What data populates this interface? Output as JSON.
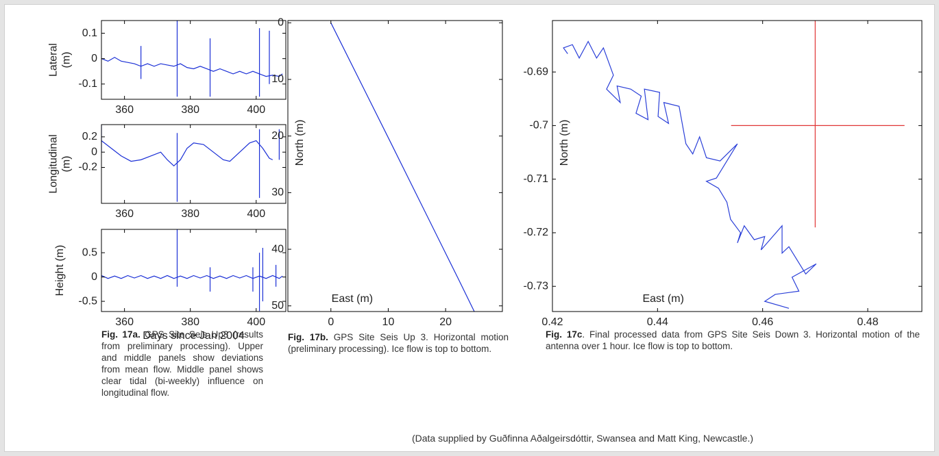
{
  "chart_data": [
    {
      "type": "line",
      "ylabel": [
        "Lateral",
        "(m)"
      ],
      "xlim": [
        353,
        409
      ],
      "ylim": [
        -0.16,
        0.15
      ],
      "xticks": [
        360,
        380,
        400
      ],
      "yticks": [
        0.1,
        0,
        -0.1
      ],
      "series": [
        {
          "color": "#1a2fd6",
          "x": [
            353,
            355,
            357,
            359,
            361,
            363,
            365,
            367,
            369,
            371,
            373,
            375,
            377,
            379,
            381,
            383,
            385,
            387,
            389,
            391,
            393,
            395,
            397,
            399,
            401,
            403,
            405,
            407,
            408
          ],
          "values": [
            0.0,
            -0.01,
            0.005,
            -0.01,
            -0.015,
            -0.02,
            -0.03,
            -0.02,
            -0.03,
            -0.02,
            -0.025,
            -0.03,
            -0.02,
            -0.035,
            -0.04,
            -0.03,
            -0.04,
            -0.05,
            -0.04,
            -0.05,
            -0.06,
            -0.05,
            -0.06,
            -0.05,
            -0.06,
            -0.07,
            -0.065,
            -0.07,
            -0.06
          ]
        },
        {
          "color": "#1a2fd6",
          "x": [
            365,
            365,
            null,
            376,
            376,
            null,
            386,
            386,
            null,
            401,
            401,
            null,
            404,
            404
          ],
          "values": [
            0.05,
            -0.08,
            null,
            0.15,
            -0.15,
            null,
            0.08,
            -0.15,
            null,
            0.12,
            -0.15,
            null,
            0.11,
            -0.1
          ]
        }
      ]
    },
    {
      "type": "line",
      "ylabel": [
        "Longitudinal",
        "(m)"
      ],
      "xlim": [
        353,
        409
      ],
      "ylim": [
        -0.67,
        0.36
      ],
      "xticks": [
        360,
        380,
        400
      ],
      "yticks": [
        0.2,
        0,
        -0.2
      ],
      "series": [
        {
          "color": "#1a2fd6",
          "x": [
            353,
            356,
            359,
            362,
            365,
            368,
            371,
            373,
            375,
            377,
            379,
            381,
            384,
            387,
            390,
            392,
            395,
            398,
            400,
            402,
            404,
            405
          ],
          "values": [
            0.15,
            0.05,
            -0.05,
            -0.12,
            -0.1,
            -0.05,
            0,
            -0.1,
            -0.18,
            -0.1,
            0.05,
            0.12,
            0.1,
            0.0,
            -0.1,
            -0.12,
            0.0,
            0.12,
            0.15,
            0.05,
            -0.08,
            -0.1
          ]
        },
        {
          "color": "#1a2fd6",
          "x": [
            353,
            353,
            null,
            376,
            376,
            null,
            401,
            401,
            null,
            407,
            407
          ],
          "values": [
            0.35,
            0,
            null,
            0.25,
            -0.65,
            null,
            0.3,
            -0.6,
            null,
            0.3,
            -0.1
          ]
        }
      ]
    },
    {
      "type": "line",
      "ylabel": [
        "Height (m)"
      ],
      "xlabel": "Days since Jan 2004",
      "xlim": [
        353,
        409
      ],
      "ylim": [
        -0.71,
        0.98
      ],
      "xticks": [
        360,
        380,
        400
      ],
      "yticks": [
        0.5,
        0,
        -0.5
      ],
      "series": [
        {
          "color": "#1a2fd6",
          "x": [
            353,
            355,
            357,
            359,
            361,
            363,
            365,
            367,
            369,
            371,
            373,
            375,
            377,
            379,
            381,
            383,
            385,
            387,
            389,
            391,
            393,
            395,
            397,
            399,
            401,
            403,
            405,
            407,
            408
          ],
          "values": [
            0.03,
            -0.03,
            0.02,
            -0.03,
            0.03,
            -0.02,
            0.03,
            -0.03,
            0.02,
            -0.03,
            0.03,
            -0.03,
            0.02,
            -0.03,
            0.03,
            -0.02,
            0.03,
            -0.03,
            0.02,
            -0.03,
            0.03,
            -0.02,
            0.03,
            -0.03,
            0.02,
            -0.03,
            0.03,
            -0.03,
            0.02
          ]
        },
        {
          "color": "#1a2fd6",
          "x": [
            376,
            376,
            null,
            386,
            386,
            null,
            399,
            399,
            null,
            401,
            401,
            null,
            402,
            402,
            null,
            406,
            406
          ],
          "values": [
            0.98,
            -0.2,
            null,
            0.2,
            -0.3,
            null,
            0.2,
            -0.3,
            null,
            0.5,
            -0.7,
            null,
            0.6,
            -0.5,
            null,
            0.25,
            -0.2
          ]
        }
      ]
    },
    {
      "type": "line",
      "ylabel": "North (m)",
      "xlabel": "East (m)",
      "xlim": [
        -7.5,
        29.9
      ],
      "ylim": [
        -0.4,
        51
      ],
      "y_inverted": true,
      "xticks": [
        0,
        10,
        20
      ],
      "yticks": [
        0,
        10,
        20,
        30,
        40,
        50
      ],
      "series": [
        {
          "color": "#1a2fd6",
          "x": [
            0,
            10.5,
            22.2,
            25
          ],
          "values": [
            0,
            21.3,
            45.2,
            51
          ]
        }
      ]
    },
    {
      "type": "line",
      "ylabel": "North (m)",
      "xlabel": "East (m)",
      "xlim": [
        0.42,
        0.4903
      ],
      "ylim": [
        -0.7347,
        -0.6804
      ],
      "xticks": [
        0.42,
        0.44,
        0.46,
        0.48
      ],
      "yticks": [
        -0.69,
        -0.7,
        -0.71,
        -0.72,
        -0.73
      ],
      "series": [
        {
          "color": "#2a3fd8",
          "x": [
            0.4229,
            0.4221,
            0.4238,
            0.4251,
            0.4268,
            0.4284,
            0.4297,
            0.4316,
            0.4303,
            0.4329,
            0.4323,
            0.4349,
            0.4369,
            0.4359,
            0.4382,
            0.4375,
            0.4404,
            0.4401,
            0.4421,
            0.4412,
            0.4441,
            0.4454,
            0.4467,
            0.448,
            0.4493,
            0.4519,
            0.4552,
            0.4512,
            0.4493,
            0.4516,
            0.4532,
            0.4539,
            0.4558,
            0.4552,
            0.4565,
            0.4584,
            0.4604,
            0.4597,
            0.4637,
            0.4637,
            0.465,
            0.4682,
            0.4702,
            0.4656,
            0.4669,
            0.4624,
            0.4604,
            0.465
          ],
          "values": [
            -0.6866,
            -0.6855,
            -0.6849,
            -0.6874,
            -0.6843,
            -0.6874,
            -0.6855,
            -0.6906,
            -0.6932,
            -0.6957,
            -0.6926,
            -0.6932,
            -0.6945,
            -0.6977,
            -0.6989,
            -0.6932,
            -0.6938,
            -0.6983,
            -0.6996,
            -0.6957,
            -0.6964,
            -0.7034,
            -0.7053,
            -0.7021,
            -0.706,
            -0.7066,
            -0.7034,
            -0.7098,
            -0.7104,
            -0.7117,
            -0.7143,
            -0.7175,
            -0.72,
            -0.7219,
            -0.7187,
            -0.7213,
            -0.7207,
            -0.7232,
            -0.7187,
            -0.7238,
            -0.7226,
            -0.7277,
            -0.7258,
            -0.7283,
            -0.7309,
            -0.7315,
            -0.7328,
            -0.7341
          ]
        },
        {
          "color": "#e03535",
          "x": [
            0.454,
            0.487,
            null,
            0.47,
            0.47
          ],
          "values": [
            -0.7,
            -0.7,
            null,
            -0.6804,
            -0.719
          ]
        }
      ]
    }
  ],
  "captions": [
    {
      "label": "Fig. 17a.",
      "text": "GPS Site Seis Up3 (results from preliminary processing). Upper and middle panels show deviations from mean flow. Middle panel shows clear tidal (bi-weekly) influence on longitudinal flow."
    },
    {
      "label": "Fig. 17b.",
      "text": "GPS Site Seis Up 3. Horizontal motion (preliminary processing). Ice flow is top to bottom."
    },
    {
      "label": "Fig. 17c",
      "text": ". Final processed data from GPS Site Seis Down 3. Horizontal motion of the antenna over 1 hour. Ice flow is top to bottom."
    }
  ],
  "credit": "(Data supplied by Guðfinna Aðalgeirsdóttir, Swansea and Matt King, Newcastle.)"
}
